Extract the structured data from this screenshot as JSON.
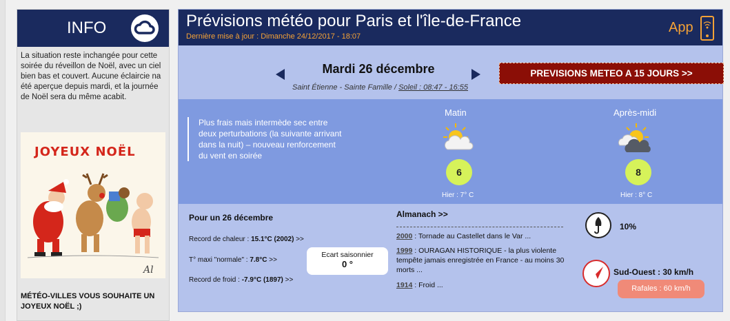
{
  "info": {
    "title": "INFO",
    "text": "La situation reste inchangée pour cette soirée du réveillon de Noël, avec un ciel bien bas et couvert. Aucune éclaircie na été aperçue depuis mardi, et la journée de Noël sera du même acabit.",
    "image_title": "JOYEUX NOËL",
    "footer": "MÉTÉO-VILLES VOUS SOUHAITE UN JOYEUX NOËL ;)",
    "icon": "cloud-icon"
  },
  "header": {
    "title": "Prévisions météo pour Paris et l'île-de-France",
    "update": "Dernière mise à jour : Dimanche 24/12/2017 - 18:07",
    "app_label": "App"
  },
  "day_nav": {
    "date": "Mardi 26 décembre",
    "saints": "Saint Étienne - Sainte Famille / ",
    "sun": "Soleil : 08:47 - 16:55",
    "forecast_15_button": "PREVISIONS METEO A 15 JOURS >>"
  },
  "forecast": {
    "description": "Plus frais mais intermède sec entre deux perturbations (la suivante arrivant dans la nuit) – nouveau renforcement du vent en soirée",
    "morning": {
      "label": "Matin",
      "temp": "6",
      "maxi": "Hier : 7° C",
      "icon": "sun-cloud-icon"
    },
    "afternoon": {
      "label": "Après-midi",
      "temp": "8",
      "maxi": "Hier : 8° C",
      "icon": "sun-dark-cloud-icon"
    }
  },
  "records": {
    "title": "Pour un 26 décembre",
    "heat_label": "Record de chaleur : ",
    "heat_value": "15.1°C (2002)",
    "heat_suffix": " >>",
    "normal_label": "T° maxi \"normale\" : ",
    "normal_value": "7.8°C",
    "normal_suffix": " >>",
    "cold_label": "Record de froid : ",
    "cold_value": "-7.9°C (1897)",
    "cold_suffix": " >>",
    "ecart_label": "Ecart saisonnier",
    "ecart_value": "0 °"
  },
  "almanach": {
    "title": "Almanach >>",
    "items": [
      {
        "year": "2000",
        "text": " : Tornade au Castellet dans le Var ..."
      },
      {
        "year": "1999",
        "text": " : OURAGAN HISTORIQUE - la plus violente tempête jamais enregistrée en France - au moins 30 morts ..."
      },
      {
        "year": "1914",
        "text": " : Froid ..."
      }
    ]
  },
  "conditions": {
    "rain_probability": "10%",
    "rain_icon": "umbrella-icon",
    "wind": "Sud-Ouest : 30 km/h",
    "wind_icon": "wind-direction-icon",
    "gusts": "Rafales : 60 km/h"
  },
  "colors": {
    "navy": "#1a2a5e",
    "orange": "#f5a236",
    "band_blue": "#7f9ae0",
    "panel_blue": "#b4c2ec",
    "button_red": "#8b0e06",
    "temp_green": "#d6f25a",
    "gust_salmon": "#f08a78"
  }
}
